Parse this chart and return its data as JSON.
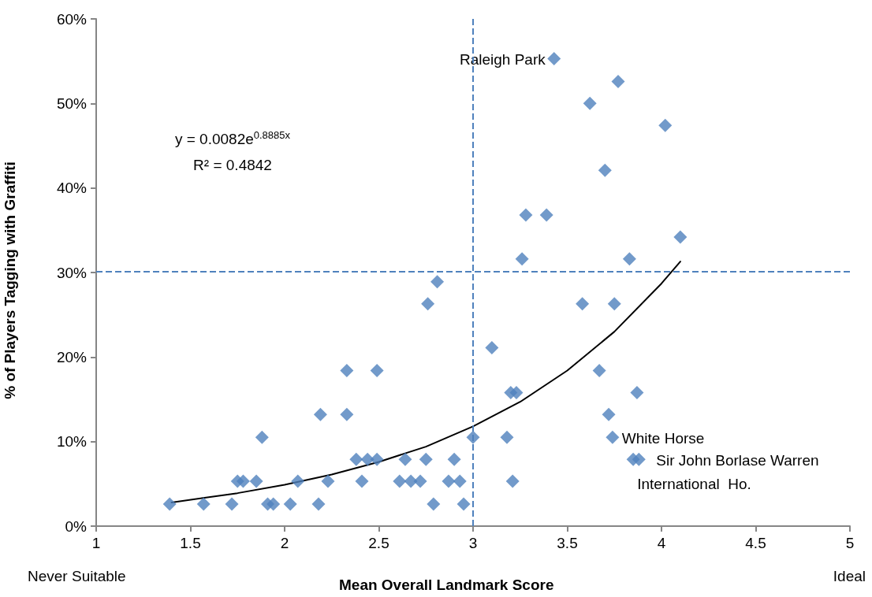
{
  "chart_data": {
    "type": "scatter",
    "xlabel": "Mean Overall Landmark Score",
    "ylabel": "% of Players Tagging with Graffiti",
    "xlim": [
      1,
      5
    ],
    "xticks": [
      1,
      1.5,
      2,
      2.5,
      3,
      3.5,
      4,
      4.5,
      5
    ],
    "ylim": [
      0,
      60
    ],
    "yticks": [
      {
        "value": 0,
        "label": "0%"
      },
      {
        "value": 10,
        "label": "10%"
      },
      {
        "value": 20,
        "label": "20%"
      },
      {
        "value": 30,
        "label": "30%"
      },
      {
        "value": 40,
        "label": "40%"
      },
      {
        "value": 50,
        "label": "50%"
      },
      {
        "value": 60,
        "label": "60%"
      }
    ],
    "grid": false,
    "marker": "diamond",
    "series": [
      {
        "color": "#4f81bd",
        "x": [
          1.39,
          1.57,
          1.72,
          1.91,
          1.94,
          2.03,
          2.18,
          2.79,
          2.95,
          1.75,
          1.78,
          1.85,
          2.07,
          2.23,
          2.41,
          2.61,
          2.67,
          2.72,
          2.87,
          2.93,
          3.21,
          2.38,
          2.44,
          2.49,
          2.64,
          2.75,
          2.9,
          3.85,
          3.88,
          1.88,
          3.0,
          3.18,
          3.74,
          2.19,
          2.33,
          3.72,
          3.2,
          3.23,
          3.87,
          2.33,
          2.49,
          3.67,
          3.1,
          2.76,
          3.58,
          3.75,
          2.81,
          3.26,
          3.83,
          4.1,
          3.28,
          3.39,
          3.7,
          4.02,
          3.62,
          3.77,
          3.43
        ],
        "values": [
          2.6,
          2.6,
          2.6,
          2.6,
          2.6,
          2.6,
          2.6,
          2.6,
          2.6,
          5.3,
          5.3,
          5.3,
          5.3,
          5.3,
          5.3,
          5.3,
          5.3,
          5.3,
          5.3,
          5.3,
          5.3,
          7.9,
          7.9,
          7.9,
          7.9,
          7.9,
          7.9,
          7.9,
          7.9,
          10.5,
          10.5,
          10.5,
          10.5,
          13.2,
          13.2,
          13.2,
          15.8,
          15.8,
          15.8,
          18.4,
          18.4,
          18.4,
          21.1,
          26.3,
          26.3,
          26.3,
          28.9,
          31.6,
          31.6,
          34.2,
          36.8,
          36.8,
          42.1,
          47.4,
          50.0,
          52.6,
          55.3
        ]
      },
      {
        "type": "line",
        "color": "#000000",
        "marker": "none",
        "line_style": "solid",
        "x": [
          1.4,
          1.75,
          2,
          2.25,
          2.5,
          2.75,
          3,
          3.25,
          3.5,
          3.75,
          4,
          4.1
        ],
        "values": [
          2.8,
          3.9,
          4.9,
          6.1,
          7.6,
          9.4,
          11.8,
          14.7,
          18.4,
          23.0,
          28.7,
          31.3
        ]
      }
    ],
    "ref_lines": [
      {
        "axis": "x",
        "value": 3,
        "color": "#4f81bd",
        "line_style": "dashed"
      },
      {
        "axis": "y",
        "value": 30.1,
        "color": "#4f81bd",
        "line_style": "dashed"
      }
    ],
    "annotations": [
      "y = 0.0082e$^{0.8885x}$",
      "R² = 0.4842",
      {
        "text": "Raleigh Park",
        "x": 3.43,
        "y": 55.3
      },
      {
        "text": "White Horse",
        "x": 3.74,
        "y": 10.5
      },
      {
        "text": "Sir John Borlase Warren",
        "x": 3.88,
        "y": 7.9
      },
      {
        "text": "International  Ho.",
        "x": 3.85,
        "y": 7.9
      },
      "Never Suitable",
      "Ideal"
    ]
  }
}
